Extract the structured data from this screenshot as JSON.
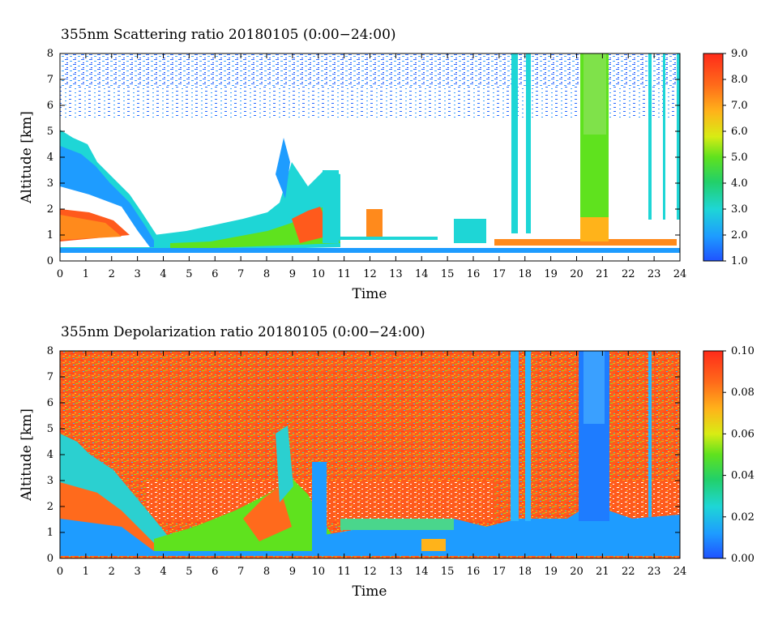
{
  "chart_data": [
    {
      "type": "heatmap",
      "title": "355nm Scattering ratio  20180105 (0:00−24:00)",
      "xlabel": "Time",
      "ylabel": "Altitude [km]",
      "xlim": [
        0,
        24
      ],
      "ylim": [
        0,
        8
      ],
      "x_ticks": [
        "0",
        "1",
        "2",
        "3",
        "4",
        "5",
        "6",
        "7",
        "8",
        "9",
        "10",
        "11",
        "12",
        "13",
        "14",
        "15",
        "16",
        "17",
        "18",
        "19",
        "20",
        "21",
        "22",
        "23",
        "24"
      ],
      "y_ticks": [
        "0",
        "1",
        "2",
        "3",
        "4",
        "5",
        "6",
        "7",
        "8"
      ],
      "colorbar": {
        "min": 1.0,
        "max": 9.0,
        "ticks": [
          "1.0",
          "2.0",
          "3.0",
          "4.0",
          "5.0",
          "6.0",
          "7.0",
          "8.0",
          "9.0"
        ]
      },
      "features": {
        "noise_top_altitude_km": [
          5.8,
          8
        ],
        "cloud_columns_time_h": [
          17.6,
          18.0,
          20.3,
          20.6,
          20.9,
          22.8,
          23.4
        ],
        "low_cloud_layer_km": 0.4
      }
    },
    {
      "type": "heatmap",
      "title": "355nm Depolarization ratio  20180105 (0:00−24:00)",
      "xlabel": "Time",
      "ylabel": "Altitude [km]",
      "xlim": [
        0,
        24
      ],
      "ylim": [
        0,
        8
      ],
      "x_ticks": [
        "0",
        "1",
        "2",
        "3",
        "4",
        "5",
        "6",
        "7",
        "8",
        "9",
        "10",
        "11",
        "12",
        "13",
        "14",
        "15",
        "16",
        "17",
        "18",
        "19",
        "20",
        "21",
        "22",
        "23",
        "24"
      ],
      "y_ticks": [
        "0",
        "1",
        "2",
        "3",
        "4",
        "5",
        "6",
        "7",
        "8"
      ],
      "colorbar": {
        "min": 0.0,
        "max": 0.1,
        "ticks": [
          "0.00",
          "0.02",
          "0.04",
          "0.06",
          "0.08",
          "0.10"
        ]
      }
    }
  ]
}
